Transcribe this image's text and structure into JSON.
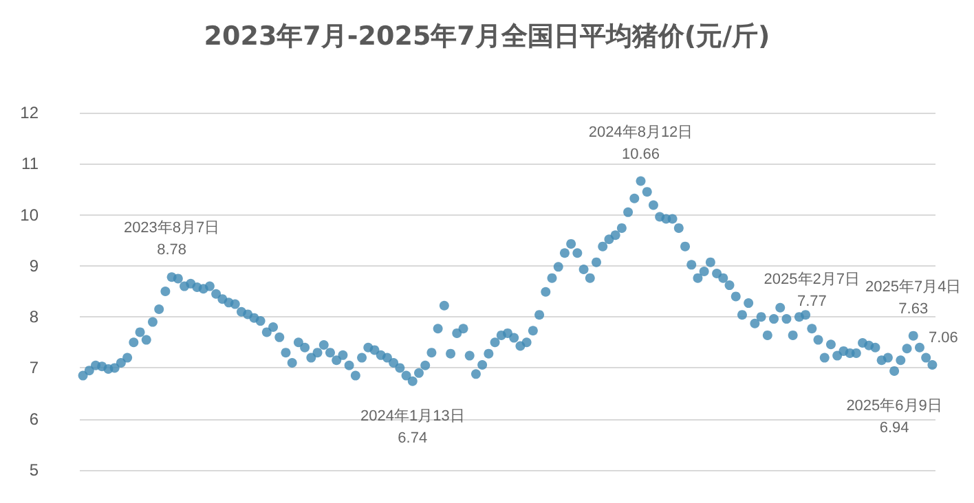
{
  "chart_data": {
    "type": "scatter",
    "title": "2023年7月-2025年7月全国日平均猪价(元/斤)",
    "categories": [
      null,
      null,
      null,
      null,
      null,
      null,
      null,
      null,
      null,
      null,
      null,
      null,
      null,
      null,
      null,
      null,
      null,
      null,
      null,
      null,
      null,
      null,
      null,
      null,
      null,
      null,
      null,
      null,
      null,
      null,
      null,
      null,
      null,
      null,
      null,
      null,
      null,
      null,
      null,
      null,
      null,
      null,
      null,
      null,
      null,
      null,
      null,
      null,
      null,
      null,
      null,
      null,
      null,
      null,
      null,
      null,
      null,
      null,
      null,
      null,
      null,
      null,
      null,
      null,
      null,
      null,
      null,
      null,
      null,
      null,
      null,
      null,
      null,
      null,
      null,
      null,
      null,
      null,
      null,
      null,
      null,
      null,
      null,
      null,
      null,
      null,
      null,
      null,
      null,
      null,
      null,
      null,
      null,
      null,
      null,
      null,
      null,
      null,
      null,
      null,
      null,
      null,
      null,
      null,
      null,
      null,
      null,
      null,
      null,
      null,
      null,
      null,
      null,
      null,
      null,
      null,
      null,
      null,
      null,
      null,
      null,
      null,
      null,
      null,
      null,
      null,
      null,
      null,
      null,
      null,
      null,
      null,
      null,
      null,
      null
    ],
    "series": [
      {
        "color": "#3f88b3",
        "values": [
          6.85,
          6.95,
          7.05,
          7.03,
          6.98,
          7.0,
          7.1,
          7.2,
          7.5,
          7.7,
          7.55,
          7.9,
          8.15,
          8.5,
          8.78,
          8.75,
          8.6,
          8.65,
          8.58,
          8.55,
          8.6,
          8.45,
          8.35,
          8.28,
          8.25,
          8.1,
          8.05,
          7.98,
          7.92,
          7.7,
          7.8,
          7.6,
          7.3,
          7.1,
          7.5,
          7.4,
          7.2,
          7.3,
          7.45,
          7.3,
          7.15,
          7.25,
          7.05,
          6.85,
          7.2,
          7.4,
          7.35,
          7.25,
          7.2,
          7.1,
          7.0,
          6.85,
          6.74,
          6.9,
          7.05,
          7.3,
          7.77,
          8.22,
          7.28,
          7.68,
          7.77,
          7.24,
          6.88,
          7.06,
          7.28,
          7.5,
          7.64,
          7.68,
          7.59,
          7.43,
          7.5,
          7.73,
          8.04,
          8.49,
          8.76,
          8.98,
          9.25,
          9.43,
          9.25,
          8.93,
          8.76,
          9.07,
          9.38,
          9.52,
          9.6,
          9.74,
          10.05,
          10.32,
          10.66,
          10.45,
          10.19,
          9.96,
          9.92,
          9.92,
          9.74,
          9.38,
          9.02,
          8.76,
          8.89,
          9.07,
          8.85,
          8.76,
          8.62,
          8.4,
          8.04,
          8.27,
          7.87,
          8.0,
          7.64,
          7.96,
          8.18,
          7.96,
          7.64,
          8.0,
          8.04,
          7.77,
          7.55,
          7.2,
          7.46,
          7.24,
          7.33,
          7.29,
          7.29,
          7.49,
          7.44,
          7.4,
          7.15,
          7.2,
          6.94,
          7.15,
          7.38,
          7.63,
          7.4,
          7.2,
          7.06
        ],
        "value_labels": [
          null,
          null,
          null,
          null,
          null,
          null,
          null,
          null,
          null,
          null,
          null,
          null,
          null,
          null,
          "2023年8月7日\n8.78",
          null,
          null,
          null,
          null,
          null,
          null,
          null,
          null,
          null,
          null,
          null,
          null,
          null,
          null,
          null,
          null,
          null,
          null,
          null,
          null,
          null,
          null,
          null,
          null,
          null,
          null,
          null,
          null,
          null,
          null,
          null,
          null,
          null,
          null,
          null,
          null,
          null,
          "2024年1月13日\n6.74",
          null,
          null,
          null,
          null,
          null,
          null,
          null,
          null,
          null,
          null,
          null,
          null,
          null,
          null,
          null,
          null,
          null,
          null,
          null,
          null,
          null,
          null,
          null,
          null,
          null,
          null,
          null,
          null,
          null,
          null,
          null,
          null,
          null,
          null,
          null,
          "2024年8月12日\n10.66",
          null,
          null,
          null,
          null,
          null,
          null,
          null,
          null,
          null,
          null,
          null,
          null,
          null,
          null,
          null,
          null,
          null,
          null,
          null,
          null,
          null,
          null,
          null,
          null,
          null,
          null,
          "2025年2月7日\n7.77",
          null,
          null,
          null,
          null,
          null,
          null,
          null,
          null,
          null,
          null,
          null,
          null,
          "2025年6月9日\n6.94",
          null,
          null,
          "2025年7月4日\n7.63",
          null,
          null,
          "7.06"
        ]
      }
    ],
    "ylim": [
      5,
      12
    ],
    "yticks": [
      5,
      6,
      7,
      8,
      9,
      10,
      11,
      12
    ],
    "grid": "y",
    "marker": "circle",
    "tick_labels": "y"
  }
}
